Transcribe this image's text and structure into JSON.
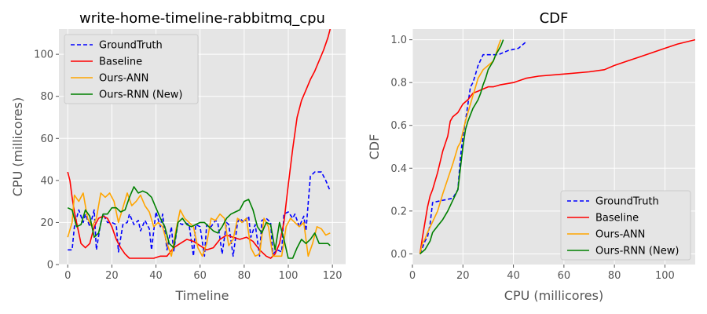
{
  "chart_data": [
    {
      "type": "line",
      "title": "write-home-timeline-rabbitmq_cpu",
      "xlabel": "Timeline",
      "ylabel": "CPU (millicores)",
      "xlim": [
        -4,
        126
      ],
      "ylim": [
        0,
        112
      ],
      "xticks": [
        0,
        20,
        40,
        60,
        80,
        100,
        120
      ],
      "yticks": [
        0,
        20,
        40,
        60,
        80,
        100
      ],
      "grid": true,
      "legend_position": "top-left",
      "series": [
        {
          "name": "GroundTruth",
          "color": "#0000ff",
          "dash": "dashed",
          "x": [
            0,
            2,
            3,
            5,
            7,
            8,
            10,
            12,
            13,
            15,
            16,
            18,
            20,
            22,
            23,
            25,
            27,
            28,
            30,
            32,
            33,
            35,
            37,
            38,
            40,
            42,
            43,
            45,
            47,
            48,
            50,
            52,
            53,
            55,
            57,
            58,
            60,
            62,
            63,
            65,
            67,
            68,
            70,
            72,
            73,
            75,
            77,
            78,
            80,
            82,
            83,
            85,
            87,
            88,
            90,
            92,
            93,
            95,
            97,
            98,
            100,
            102,
            103,
            105,
            107,
            108,
            110,
            112,
            113,
            115,
            117,
            119
          ],
          "y": [
            7,
            7,
            18,
            26,
            20,
            24,
            18,
            26,
            7,
            20,
            24,
            20,
            20,
            19,
            6,
            19,
            20,
            24,
            19,
            21,
            16,
            21,
            17,
            7,
            25,
            18,
            24,
            7,
            18,
            6,
            20,
            19,
            20,
            19,
            4,
            19,
            18,
            4,
            19,
            18,
            21,
            20,
            5,
            20,
            19,
            4,
            20,
            22,
            20,
            23,
            13,
            19,
            4,
            21,
            22,
            20,
            5,
            7,
            6,
            24,
            25,
            22,
            24,
            18,
            23,
            16,
            42,
            44,
            44,
            44,
            40,
            35
          ]
        },
        {
          "name": "Baseline",
          "color": "#ff0000",
          "dash": "solid",
          "x": [
            0,
            1,
            2,
            3,
            4,
            5,
            6,
            8,
            10,
            12,
            14,
            16,
            18,
            20,
            22,
            24,
            26,
            28,
            30,
            33,
            36,
            39,
            42,
            45,
            48,
            51,
            54,
            57,
            60,
            63,
            66,
            69,
            72,
            75,
            78,
            81,
            84,
            87,
            90,
            92,
            94,
            96,
            98,
            100,
            102,
            104,
            106,
            108,
            110,
            112,
            114,
            116,
            118,
            119
          ],
          "y": [
            44,
            40,
            32,
            25,
            20,
            15,
            10,
            8,
            10,
            18,
            22,
            23,
            22,
            18,
            12,
            8,
            5,
            3,
            3,
            3,
            3,
            3,
            4,
            4,
            8,
            10,
            12,
            11,
            9,
            7,
            8,
            12,
            14,
            13,
            12,
            13,
            11,
            7,
            4,
            3,
            5,
            10,
            20,
            38,
            55,
            70,
            78,
            83,
            88,
            92,
            97,
            102,
            108,
            112
          ]
        },
        {
          "name": "Ours-ANN",
          "color": "#ffa500",
          "dash": "solid",
          "x": [
            0,
            2,
            3,
            5,
            7,
            9,
            11,
            13,
            15,
            17,
            19,
            21,
            23,
            25,
            27,
            29,
            31,
            33,
            35,
            37,
            39,
            41,
            43,
            45,
            47,
            49,
            51,
            53,
            55,
            57,
            59,
            61,
            63,
            65,
            67,
            69,
            71,
            73,
            75,
            77,
            79,
            81,
            83,
            85,
            87,
            89,
            91,
            93,
            95,
            97,
            99,
            101,
            103,
            105,
            107,
            109,
            111,
            113,
            115,
            117,
            119
          ],
          "y": [
            13,
            20,
            33,
            30,
            34,
            22,
            18,
            22,
            34,
            32,
            34,
            30,
            20,
            27,
            34,
            28,
            30,
            33,
            28,
            25,
            18,
            20,
            18,
            10,
            4,
            16,
            26,
            22,
            20,
            18,
            8,
            4,
            10,
            22,
            21,
            24,
            22,
            9,
            12,
            22,
            20,
            22,
            8,
            4,
            5,
            22,
            18,
            4,
            4,
            4,
            18,
            22,
            20,
            18,
            20,
            4,
            10,
            18,
            17,
            14,
            15
          ]
        },
        {
          "name": "Ours-RNN (New)",
          "color": "#008000",
          "dash": "solid",
          "x": [
            0,
            2,
            4,
            6,
            8,
            10,
            12,
            14,
            16,
            18,
            20,
            22,
            24,
            26,
            28,
            30,
            32,
            34,
            36,
            38,
            40,
            42,
            44,
            46,
            48,
            50,
            52,
            54,
            56,
            58,
            60,
            62,
            64,
            66,
            68,
            70,
            72,
            74,
            76,
            78,
            80,
            82,
            84,
            86,
            88,
            90,
            92,
            94,
            96,
            98,
            100,
            102,
            104,
            106,
            108,
            110,
            112,
            114,
            116,
            118,
            119
          ],
          "y": [
            27,
            26,
            18,
            19,
            26,
            23,
            13,
            15,
            24,
            24,
            27,
            27,
            25,
            26,
            32,
            37,
            34,
            35,
            34,
            32,
            27,
            22,
            18,
            10,
            8,
            20,
            22,
            19,
            18,
            19,
            20,
            20,
            18,
            16,
            15,
            18,
            22,
            24,
            25,
            26,
            30,
            31,
            26,
            18,
            15,
            20,
            19,
            7,
            20,
            12,
            3,
            3,
            8,
            12,
            10,
            12,
            15,
            10,
            10,
            10,
            9
          ]
        }
      ]
    },
    {
      "type": "line",
      "title": "CDF",
      "xlabel": "CPU (millicores)",
      "ylabel": "CDF",
      "xlim": [
        0,
        112
      ],
      "ylim": [
        -0.05,
        1.05
      ],
      "xticks": [
        0,
        20,
        40,
        60,
        80,
        100
      ],
      "yticks": [
        0.0,
        0.2,
        0.4,
        0.6,
        0.8,
        1.0
      ],
      "ytick_labels": [
        "0.0",
        "0.2",
        "0.4",
        "0.6",
        "0.8",
        "1.0"
      ],
      "grid": true,
      "legend_position": "bottom-right",
      "series": [
        {
          "name": "GroundTruth",
          "color": "#0000ff",
          "dash": "dashed",
          "x": [
            3,
            4,
            5,
            6,
            7,
            8,
            12,
            16,
            18,
            19,
            20,
            21,
            22,
            23,
            24,
            25,
            26,
            28,
            34,
            36,
            38,
            42,
            44,
            45
          ],
          "y": [
            0,
            0.03,
            0.06,
            0.08,
            0.14,
            0.24,
            0.25,
            0.26,
            0.3,
            0.45,
            0.55,
            0.62,
            0.7,
            0.78,
            0.8,
            0.84,
            0.88,
            0.93,
            0.93,
            0.94,
            0.95,
            0.96,
            0.98,
            0.99
          ]
        },
        {
          "name": "Baseline",
          "color": "#ff0000",
          "dash": "solid",
          "x": [
            3,
            4,
            5,
            6,
            7,
            8,
            10,
            12,
            14,
            15,
            16,
            18,
            20,
            22,
            24,
            26,
            28,
            30,
            32,
            35,
            40,
            45,
            50,
            60,
            70,
            76,
            80,
            85,
            90,
            95,
            100,
            105,
            112
          ],
          "y": [
            0,
            0.08,
            0.15,
            0.22,
            0.27,
            0.3,
            0.38,
            0.48,
            0.55,
            0.62,
            0.64,
            0.66,
            0.7,
            0.72,
            0.75,
            0.76,
            0.77,
            0.78,
            0.78,
            0.79,
            0.8,
            0.82,
            0.83,
            0.84,
            0.85,
            0.86,
            0.88,
            0.9,
            0.92,
            0.94,
            0.96,
            0.98,
            1.0
          ]
        },
        {
          "name": "Ours-ANN",
          "color": "#ffa500",
          "dash": "solid",
          "x": [
            3,
            4,
            5,
            6,
            8,
            10,
            12,
            14,
            16,
            18,
            19,
            20,
            21,
            22,
            23,
            24,
            25,
            26,
            28,
            30,
            32,
            33,
            34,
            35
          ],
          "y": [
            0,
            0.05,
            0.07,
            0.1,
            0.15,
            0.2,
            0.28,
            0.35,
            0.42,
            0.5,
            0.52,
            0.57,
            0.62,
            0.66,
            0.7,
            0.74,
            0.78,
            0.82,
            0.86,
            0.88,
            0.9,
            0.93,
            0.97,
            1.0
          ]
        },
        {
          "name": "Ours-RNN (New)",
          "color": "#008000",
          "dash": "solid",
          "x": [
            3,
            5,
            7,
            8,
            10,
            12,
            14,
            16,
            18,
            19,
            20,
            21,
            22,
            23,
            24,
            25,
            26,
            27,
            28,
            29,
            30,
            31,
            32,
            33,
            34,
            35,
            36
          ],
          "y": [
            0,
            0.02,
            0.06,
            0.1,
            0.13,
            0.16,
            0.2,
            0.25,
            0.3,
            0.4,
            0.5,
            0.58,
            0.62,
            0.65,
            0.68,
            0.7,
            0.72,
            0.75,
            0.79,
            0.82,
            0.86,
            0.88,
            0.9,
            0.93,
            0.95,
            0.97,
            1.0
          ]
        }
      ]
    }
  ]
}
